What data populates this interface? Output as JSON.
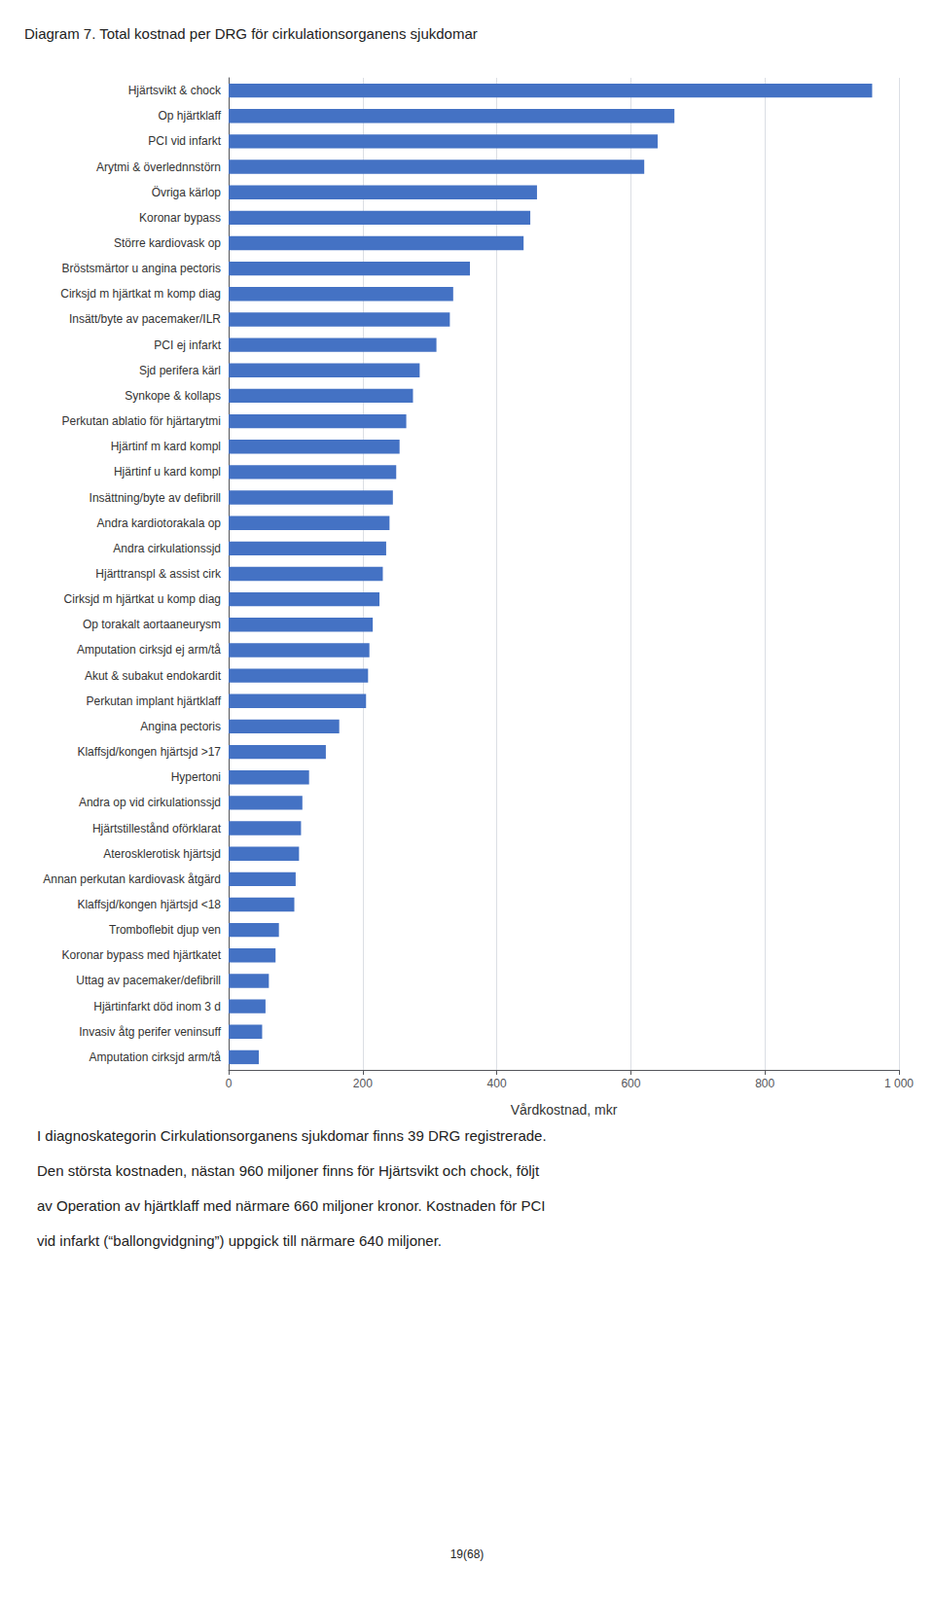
{
  "chart_data": {
    "type": "bar",
    "orientation": "horizontal",
    "title": "Diagram 7. Total kostnad per DRG för cirkulationsorganens sjukdomar",
    "xlabel": "Vårdkostnad, mkr",
    "categories": [
      "Hjärtsvikt & chock",
      "Op hjärtklaff",
      "PCI vid infarkt",
      "Arytmi & överlednnstörn",
      "Övriga kärlop",
      "Koronar bypass",
      "Större kardiovask op",
      "Bröstsmärtor u angina pectoris",
      "Cirksjd m hjärtkat m komp diag",
      "Insätt/byte av pacemaker/ILR",
      "PCI ej infarkt",
      "Sjd perifera kärl",
      "Synkope & kollaps",
      "Perkutan ablatio för hjärtarytmi",
      "Hjärtinf m kard kompl",
      "Hjärtinf u kard kompl",
      "Insättning/byte av defibrill",
      "Andra kardiotorakala op",
      "Andra cirkulationssjd",
      "Hjärttranspl & assist cirk",
      "Cirksjd m hjärtkat u komp diag",
      "Op torakalt aortaaneurysm",
      "Amputation cirksjd ej arm/tå",
      "Akut & subakut endokardit",
      "Perkutan implant hjärtklaff",
      "Angina pectoris",
      "Klaffsjd/kongen hjärtsjd >17",
      "Hypertoni",
      "Andra op vid cirkulationssjd",
      "Hjärtstillestånd oförklarat",
      "Aterosklerotisk hjärtsjd",
      "Annan perkutan kardiovask åtgärd",
      "Klaffsjd/kongen hjärtsjd <18",
      "Tromboflebit djup ven",
      "Koronar bypass med hjärtkatet",
      "Uttag av pacemaker/defibrill",
      "Hjärtinfarkt död inom 3 d",
      "Invasiv åtg perifer veninsuff",
      "Amputation cirksjd arm/tå"
    ],
    "values": [
      960,
      665,
      640,
      620,
      460,
      450,
      440,
      360,
      335,
      330,
      310,
      285,
      275,
      265,
      255,
      250,
      245,
      240,
      235,
      230,
      225,
      215,
      210,
      208,
      205,
      165,
      145,
      120,
      110,
      108,
      105,
      100,
      98,
      75,
      70,
      60,
      55,
      50,
      45
    ],
    "color": "#4472C4",
    "xlim": [
      0,
      1000
    ],
    "xticks": [
      0,
      200,
      400,
      600,
      800,
      {
        "value": 1000,
        "label": "1 000"
      }
    ],
    "grid": true,
    "annotations": [
      "I diagnoskategorin Cirkulationsorganens sjukdomar finns 39 DRG registrerade.",
      "Den största kostnaden, nästan 960 miljoner finns för Hjärtsvikt och chock, följt",
      "av Operation av hjärtklaff med närmare 660 miljoner kronor. Kostnaden för PCI",
      "vid infarkt (“ballongvidgning”) uppgick till närmare 640 miljoner."
    ],
    "page_number": "19(68)"
  }
}
